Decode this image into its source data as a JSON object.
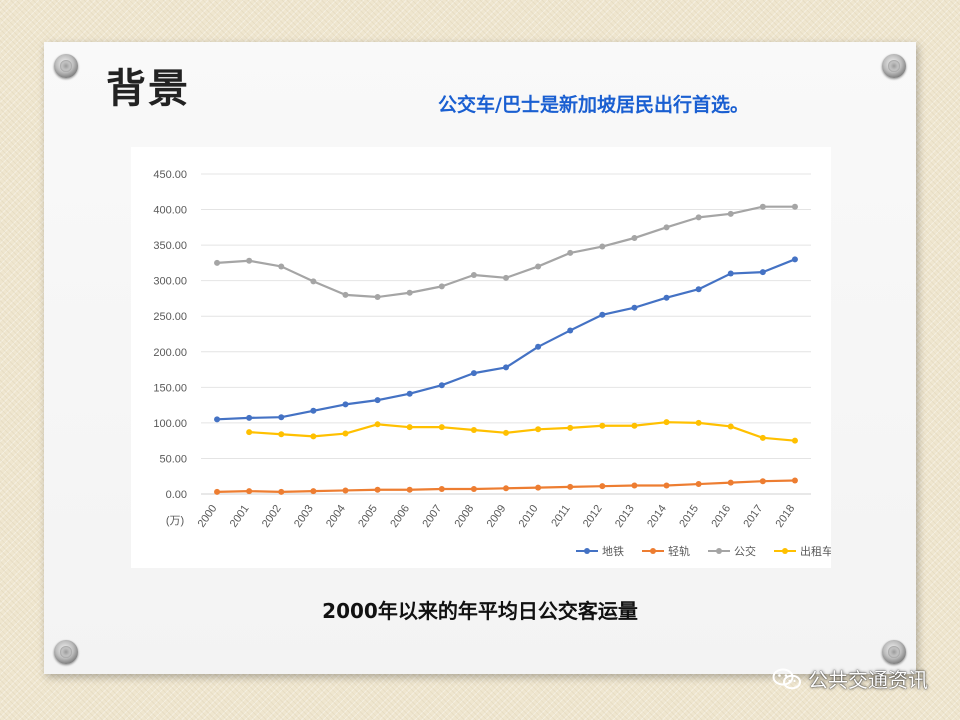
{
  "slide": {
    "title": "背景",
    "subtitle": "公交车/巴士是新加坡居民出行首选。",
    "caption": "2000年以来的年平均日公交客运量",
    "watermark": "公共交通资讯",
    "watermark_icon": "wechat-icon"
  },
  "chart_data": {
    "type": "line",
    "title": "",
    "xlabel": "",
    "ylabel": "",
    "unit_label": "(万)",
    "categories": [
      "2000",
      "2001",
      "2002",
      "2003",
      "2004",
      "2005",
      "2006",
      "2007",
      "2008",
      "2009",
      "2010",
      "2011",
      "2012",
      "2013",
      "2014",
      "2015",
      "2016",
      "2017",
      "2018"
    ],
    "ylim": [
      0,
      450
    ],
    "yticks": [
      "0.00",
      "50.00",
      "100.00",
      "150.00",
      "200.00",
      "250.00",
      "300.00",
      "350.00",
      "400.00",
      "450.00"
    ],
    "grid": true,
    "legend_position": "bottom-right",
    "series": [
      {
        "name": "地铁",
        "color": "#4472c4",
        "values": [
          105,
          107,
          108,
          117,
          126,
          132,
          141,
          153,
          170,
          178,
          207,
          230,
          252,
          262,
          276,
          288,
          310,
          312,
          330
        ]
      },
      {
        "name": "轻轨",
        "color": "#ed7d31",
        "values": [
          3,
          4,
          3,
          4,
          5,
          6,
          6,
          7,
          7,
          8,
          9,
          10,
          11,
          12,
          12,
          14,
          16,
          18,
          19
        ]
      },
      {
        "name": "公交",
        "color": "#a5a5a5",
        "values": [
          325,
          328,
          320,
          299,
          280,
          277,
          283,
          292,
          308,
          304,
          320,
          339,
          348,
          360,
          375,
          389,
          394,
          404,
          404
        ]
      },
      {
        "name": "出租车",
        "color": "#ffc000",
        "values": [
          null,
          87,
          84,
          81,
          85,
          98,
          94,
          94,
          90,
          86,
          91,
          93,
          96,
          96,
          101,
          100,
          95,
          79,
          75
        ]
      }
    ]
  }
}
